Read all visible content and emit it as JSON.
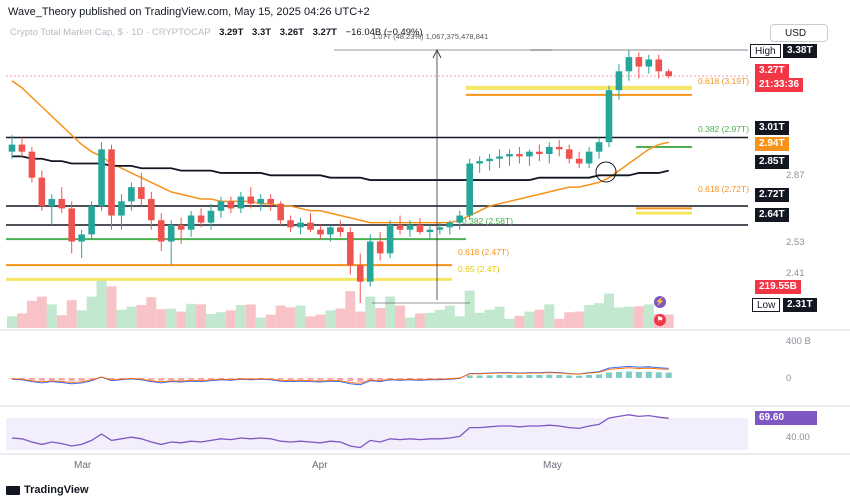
{
  "header": {
    "publisher": "Wave_Theory published on TradingView.com, May 15, 2025 04:26 UTC+2",
    "symbol_line": "Crypto Total Market Cap, $ · 1D · CRYPTOCAP",
    "ohlc": {
      "open": "3.29T",
      "high": "3.3T",
      "low": "3.26T",
      "close": "3.27T"
    },
    "change": "−16.04B (−0.49%)",
    "measure": "1.07T (48.23%) 1,067,375,478,841",
    "currency": "USD"
  },
  "price_labels": {
    "high_name": "High",
    "high": "3.38T",
    "last": "3.27T",
    "countdown": "21:33:36",
    "l301": "3.01T",
    "l294": "2.94T",
    "l285": "2.85T",
    "l272": "2.72T",
    "l264": "2.64T",
    "axis_287": "2.87",
    "axis_253": "2.53",
    "axis_241": "2.41",
    "volume": "219.55B",
    "low_name": "Low",
    "low": "2.31T"
  },
  "fib_labels": {
    "f1": "0.618 (3.19T)",
    "f2": "0.382 (2.97T)",
    "f3": "0.618 (2.72T)",
    "f4": "0.382 (2.58T)",
    "f5": "0.618 (2.47T)",
    "f6": "0.65 (2.4T)"
  },
  "macd_axis": {
    "top": "400 B",
    "zero": "0"
  },
  "rsi": {
    "value": "69.60",
    "axis": "40.00"
  },
  "x_axis": {
    "mar": "Mar",
    "apr": "Apr",
    "may": "May"
  },
  "footer": "TradingView",
  "colors": {
    "up": "#26a69a",
    "down": "#ef5350",
    "ema_orange": "#f7931a",
    "ma_black": "#131722",
    "fib_yellow": "#f5e663",
    "fib_green": "#4caf50",
    "rsi": "#7e57c2"
  },
  "chart_data": {
    "type": "candlestick",
    "title": "Crypto Total Market Cap, $",
    "timeframe": "1D",
    "unit": "T USD",
    "candles": [
      {
        "o": 2.95,
        "h": 3.02,
        "l": 2.92,
        "c": 2.98
      },
      {
        "o": 2.98,
        "h": 3.01,
        "l": 2.93,
        "c": 2.95
      },
      {
        "o": 2.95,
        "h": 2.97,
        "l": 2.82,
        "c": 2.84
      },
      {
        "o": 2.84,
        "h": 2.87,
        "l": 2.7,
        "c": 2.72
      },
      {
        "o": 2.72,
        "h": 2.77,
        "l": 2.64,
        "c": 2.75
      },
      {
        "o": 2.75,
        "h": 2.8,
        "l": 2.69,
        "c": 2.71
      },
      {
        "o": 2.71,
        "h": 2.74,
        "l": 2.52,
        "c": 2.57
      },
      {
        "o": 2.57,
        "h": 2.62,
        "l": 2.5,
        "c": 2.6
      },
      {
        "o": 2.6,
        "h": 2.74,
        "l": 2.58,
        "c": 2.72
      },
      {
        "o": 2.72,
        "h": 2.99,
        "l": 2.7,
        "c": 2.96
      },
      {
        "o": 2.96,
        "h": 2.98,
        "l": 2.62,
        "c": 2.68
      },
      {
        "o": 2.68,
        "h": 2.77,
        "l": 2.62,
        "c": 2.74
      },
      {
        "o": 2.74,
        "h": 2.82,
        "l": 2.7,
        "c": 2.8
      },
      {
        "o": 2.8,
        "h": 2.86,
        "l": 2.72,
        "c": 2.75
      },
      {
        "o": 2.75,
        "h": 2.78,
        "l": 2.62,
        "c": 2.66
      },
      {
        "o": 2.66,
        "h": 2.69,
        "l": 2.53,
        "c": 2.57
      },
      {
        "o": 2.57,
        "h": 2.66,
        "l": 2.47,
        "c": 2.64
      },
      {
        "o": 2.64,
        "h": 2.67,
        "l": 2.56,
        "c": 2.62
      },
      {
        "o": 2.62,
        "h": 2.7,
        "l": 2.59,
        "c": 2.68
      },
      {
        "o": 2.68,
        "h": 2.71,
        "l": 2.63,
        "c": 2.65
      },
      {
        "o": 2.65,
        "h": 2.73,
        "l": 2.62,
        "c": 2.7
      },
      {
        "o": 2.7,
        "h": 2.76,
        "l": 2.67,
        "c": 2.74
      },
      {
        "o": 2.74,
        "h": 2.76,
        "l": 2.69,
        "c": 2.71
      },
      {
        "o": 2.71,
        "h": 2.78,
        "l": 2.69,
        "c": 2.76
      },
      {
        "o": 2.76,
        "h": 2.8,
        "l": 2.71,
        "c": 2.73
      },
      {
        "o": 2.73,
        "h": 2.77,
        "l": 2.7,
        "c": 2.75
      },
      {
        "o": 2.75,
        "h": 2.77,
        "l": 2.7,
        "c": 2.73
      },
      {
        "o": 2.73,
        "h": 2.74,
        "l": 2.64,
        "c": 2.66
      },
      {
        "o": 2.66,
        "h": 2.68,
        "l": 2.61,
        "c": 2.63
      },
      {
        "o": 2.63,
        "h": 2.67,
        "l": 2.6,
        "c": 2.65
      },
      {
        "o": 2.65,
        "h": 2.69,
        "l": 2.61,
        "c": 2.62
      },
      {
        "o": 2.62,
        "h": 2.64,
        "l": 2.58,
        "c": 2.6
      },
      {
        "o": 2.6,
        "h": 2.64,
        "l": 2.57,
        "c": 2.63
      },
      {
        "o": 2.63,
        "h": 2.66,
        "l": 2.59,
        "c": 2.61
      },
      {
        "o": 2.61,
        "h": 2.63,
        "l": 2.43,
        "c": 2.47
      },
      {
        "o": 2.47,
        "h": 2.52,
        "l": 2.31,
        "c": 2.4
      },
      {
        "o": 2.4,
        "h": 2.6,
        "l": 2.38,
        "c": 2.57
      },
      {
        "o": 2.57,
        "h": 2.61,
        "l": 2.49,
        "c": 2.52
      },
      {
        "o": 2.52,
        "h": 2.66,
        "l": 2.5,
        "c": 2.64
      },
      {
        "o": 2.64,
        "h": 2.68,
        "l": 2.6,
        "c": 2.62
      },
      {
        "o": 2.62,
        "h": 2.66,
        "l": 2.59,
        "c": 2.64
      },
      {
        "o": 2.64,
        "h": 2.67,
        "l": 2.6,
        "c": 2.61
      },
      {
        "o": 2.61,
        "h": 2.64,
        "l": 2.58,
        "c": 2.62
      },
      {
        "o": 2.62,
        "h": 2.65,
        "l": 2.6,
        "c": 2.63
      },
      {
        "o": 2.63,
        "h": 2.66,
        "l": 2.6,
        "c": 2.65
      },
      {
        "o": 2.65,
        "h": 2.7,
        "l": 2.62,
        "c": 2.68
      },
      {
        "o": 2.68,
        "h": 2.92,
        "l": 2.66,
        "c": 2.9
      },
      {
        "o": 2.9,
        "h": 2.93,
        "l": 2.86,
        "c": 2.91
      },
      {
        "o": 2.91,
        "h": 2.94,
        "l": 2.87,
        "c": 2.92
      },
      {
        "o": 2.92,
        "h": 2.96,
        "l": 2.88,
        "c": 2.93
      },
      {
        "o": 2.93,
        "h": 2.96,
        "l": 2.89,
        "c": 2.94
      },
      {
        "o": 2.94,
        "h": 2.97,
        "l": 2.9,
        "c": 2.93
      },
      {
        "o": 2.93,
        "h": 2.96,
        "l": 2.89,
        "c": 2.95
      },
      {
        "o": 2.95,
        "h": 2.98,
        "l": 2.91,
        "c": 2.94
      },
      {
        "o": 2.94,
        "h": 2.99,
        "l": 2.9,
        "c": 2.97
      },
      {
        "o": 2.97,
        "h": 3.0,
        "l": 2.93,
        "c": 2.96
      },
      {
        "o": 2.96,
        "h": 2.98,
        "l": 2.9,
        "c": 2.92
      },
      {
        "o": 2.92,
        "h": 2.95,
        "l": 2.88,
        "c": 2.9
      },
      {
        "o": 2.9,
        "h": 2.97,
        "l": 2.88,
        "c": 2.95
      },
      {
        "o": 2.95,
        "h": 3.01,
        "l": 2.92,
        "c": 2.99
      },
      {
        "o": 2.99,
        "h": 3.23,
        "l": 2.97,
        "c": 3.21
      },
      {
        "o": 3.21,
        "h": 3.32,
        "l": 3.17,
        "c": 3.29
      },
      {
        "o": 3.29,
        "h": 3.38,
        "l": 3.25,
        "c": 3.35
      },
      {
        "o": 3.35,
        "h": 3.37,
        "l": 3.26,
        "c": 3.31
      },
      {
        "o": 3.31,
        "h": 3.36,
        "l": 3.28,
        "c": 3.34
      },
      {
        "o": 3.34,
        "h": 3.36,
        "l": 3.26,
        "c": 3.29
      },
      {
        "o": 3.29,
        "h": 3.3,
        "l": 3.26,
        "c": 3.27
      }
    ],
    "ylim": [
      2.25,
      3.45
    ],
    "horizontal_levels": [
      3.38,
      3.27,
      3.19,
      3.01,
      2.97,
      2.85,
      2.72,
      2.64,
      2.58,
      2.47,
      2.4,
      2.31
    ],
    "ema50": [
      3.25,
      3.22,
      3.18,
      3.14,
      3.1,
      3.06,
      3.02,
      2.98,
      2.95,
      2.93,
      2.9,
      2.88,
      2.86,
      2.84,
      2.82,
      2.8,
      2.78,
      2.77,
      2.76,
      2.75,
      2.75,
      2.74,
      2.74,
      2.74,
      2.74,
      2.73,
      2.73,
      2.72,
      2.72,
      2.71,
      2.7,
      2.7,
      2.69,
      2.68,
      2.67,
      2.66,
      2.65,
      2.65,
      2.65,
      2.65,
      2.65,
      2.65,
      2.65,
      2.65,
      2.65,
      2.66,
      2.68,
      2.7,
      2.72,
      2.73,
      2.74,
      2.75,
      2.76,
      2.77,
      2.78,
      2.79,
      2.8,
      2.8,
      2.81,
      2.82,
      2.84,
      2.87,
      2.9,
      2.93,
      2.96,
      2.98,
      2.99
    ],
    "ma200": [
      2.93,
      2.93,
      2.92,
      2.92,
      2.91,
      2.91,
      2.9,
      2.9,
      2.9,
      2.9,
      2.89,
      2.89,
      2.89,
      2.88,
      2.88,
      2.88,
      2.88,
      2.87,
      2.87,
      2.87,
      2.87,
      2.86,
      2.86,
      2.86,
      2.86,
      2.86,
      2.85,
      2.85,
      2.85,
      2.85,
      2.85,
      2.85,
      2.84,
      2.84,
      2.84,
      2.84,
      2.83,
      2.83,
      2.83,
      2.83,
      2.83,
      2.83,
      2.83,
      2.83,
      2.83,
      2.83,
      2.83,
      2.83,
      2.83,
      2.83,
      2.83,
      2.83,
      2.83,
      2.84,
      2.84,
      2.84,
      2.84,
      2.84,
      2.84,
      2.85,
      2.85,
      2.85,
      2.85,
      2.86,
      2.86,
      2.86,
      2.87
    ],
    "rsi_values": [
      45,
      44,
      40,
      37,
      40,
      38,
      35,
      37,
      42,
      50,
      42,
      44,
      46,
      44,
      40,
      37,
      40,
      39,
      41,
      40,
      42,
      44,
      43,
      45,
      44,
      45,
      44,
      41,
      40,
      41,
      40,
      39,
      41,
      40,
      35,
      33,
      42,
      40,
      44,
      43,
      44,
      43,
      44,
      44,
      45,
      47,
      58,
      58,
      59,
      60,
      60,
      59,
      60,
      60,
      61,
      60,
      58,
      57,
      60,
      62,
      70,
      72,
      74,
      72,
      73,
      71,
      69.6
    ]
  }
}
